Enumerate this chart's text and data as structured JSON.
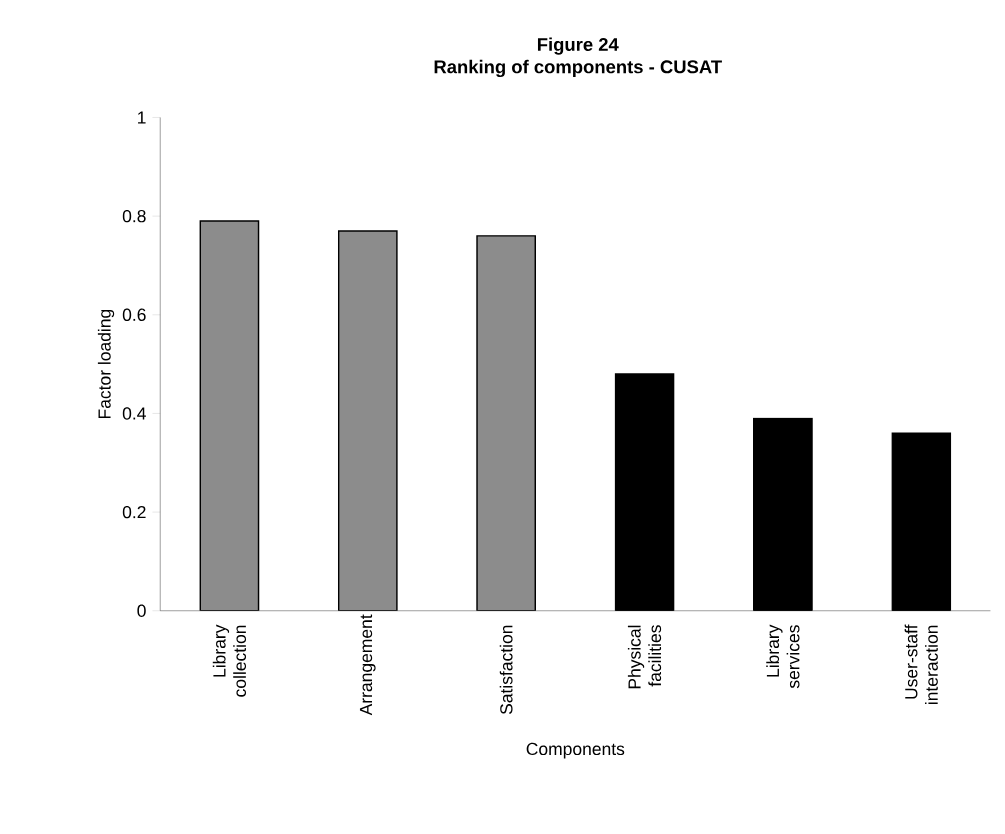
{
  "chart_data": {
    "type": "bar",
    "title": "Figure 24",
    "subtitle": "Ranking of components - CUSAT",
    "xlabel": "Components",
    "ylabel": "Factor loading",
    "categories": [
      "Library collection",
      "Arrangement",
      "Satisfaction",
      "Physical facilities",
      "Library services",
      "User-staff interaction"
    ],
    "values": [
      0.79,
      0.77,
      0.76,
      0.48,
      0.39,
      0.36
    ],
    "colors": [
      "#8c8c8c",
      "#8c8c8c",
      "#8c8c8c",
      "#000000",
      "#000000",
      "#000000"
    ],
    "ylim": [
      0,
      1
    ],
    "yticks": [
      0,
      0.2,
      0.4,
      0.6,
      0.8,
      1
    ],
    "grid": false
  }
}
